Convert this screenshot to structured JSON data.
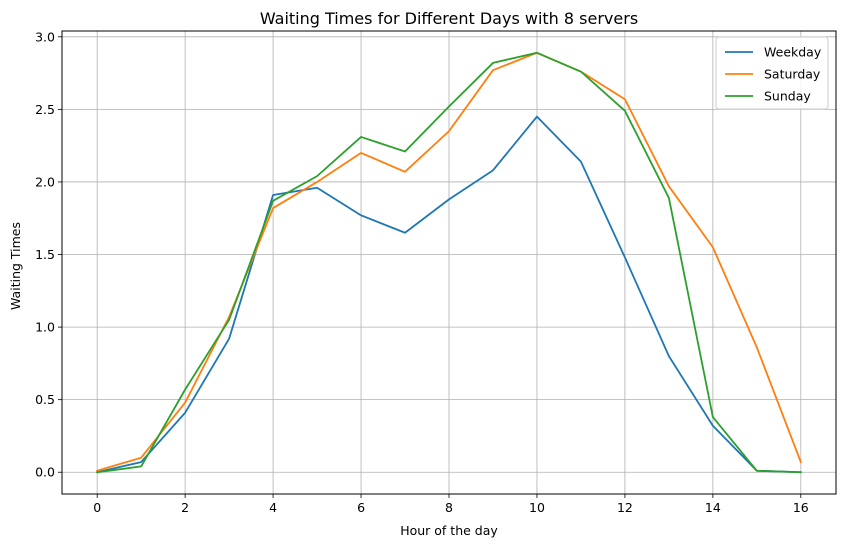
{
  "chart_data": {
    "type": "line",
    "title": "Waiting Times for Different Days with 8 servers",
    "xlabel": "Hour of the day",
    "ylabel": "Waiting Times",
    "x": [
      0,
      1,
      2,
      3,
      4,
      5,
      6,
      7,
      8,
      9,
      10,
      11,
      12,
      13,
      14,
      15,
      16
    ],
    "xlim": [
      -0.8,
      16.8
    ],
    "ylim": [
      -0.15,
      3.04
    ],
    "xticks": [
      0,
      2,
      4,
      6,
      8,
      10,
      12,
      14,
      16
    ],
    "xtick_labels": [
      "0",
      "2",
      "4",
      "6",
      "8",
      "10",
      "12",
      "14",
      "16"
    ],
    "yticks": [
      0.0,
      0.5,
      1.0,
      1.5,
      2.0,
      2.5,
      3.0
    ],
    "ytick_labels": [
      "0.0",
      "0.5",
      "1.0",
      "1.5",
      "2.0",
      "2.5",
      "3.0"
    ],
    "grid": true,
    "legend_position": "top-right",
    "series": [
      {
        "name": "Weekday",
        "color": "#1f77b4",
        "values": [
          0.0,
          0.07,
          0.41,
          0.92,
          1.91,
          1.96,
          1.77,
          1.65,
          1.88,
          2.08,
          2.45,
          2.14,
          1.48,
          0.8,
          0.32,
          0.01,
          0.0
        ]
      },
      {
        "name": "Saturday",
        "color": "#ff7f0e",
        "values": [
          0.01,
          0.1,
          0.48,
          1.07,
          1.82,
          2.0,
          2.2,
          2.07,
          2.35,
          2.77,
          2.89,
          2.76,
          2.57,
          1.97,
          1.55,
          0.86,
          0.07
        ]
      },
      {
        "name": "Sunday",
        "color": "#2ca02c",
        "values": [
          0.0,
          0.04,
          0.57,
          1.05,
          1.87,
          2.04,
          2.31,
          2.21,
          2.52,
          2.82,
          2.89,
          2.76,
          2.49,
          1.89,
          0.38,
          0.01,
          0.0
        ]
      }
    ]
  }
}
